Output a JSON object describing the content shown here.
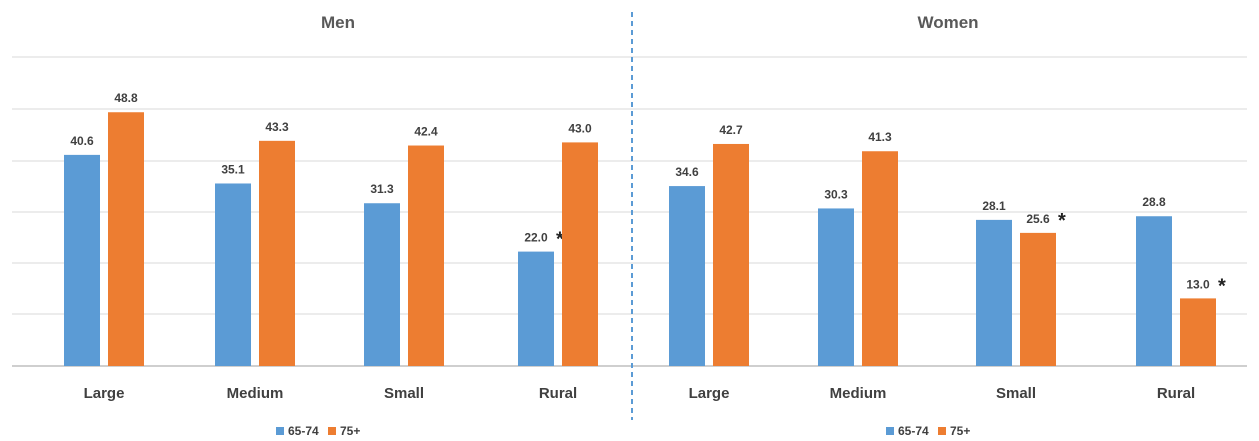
{
  "chart_data": [
    {
      "type": "bar",
      "title": "Men",
      "categories": [
        "Large",
        "Medium",
        "Small",
        "Rural"
      ],
      "series": [
        {
          "name": "65-74",
          "values": [
            40.6,
            35.1,
            31.3,
            22.0
          ],
          "value_labels": [
            "40.6",
            "35.1",
            "31.3",
            "22.0"
          ],
          "starred": [
            false,
            false,
            false,
            true
          ]
        },
        {
          "name": "75+",
          "values": [
            48.8,
            43.3,
            42.4,
            43.0
          ],
          "value_labels": [
            "48.8",
            "43.3",
            "42.4",
            "43.0"
          ],
          "starred": [
            false,
            false,
            false,
            false
          ]
        }
      ],
      "ylim": [
        0,
        60
      ],
      "grid": true,
      "legend": "bottom-center"
    },
    {
      "type": "bar",
      "title": "Women",
      "categories": [
        "Large",
        "Medium",
        "Small",
        "Rural"
      ],
      "series": [
        {
          "name": "65-74",
          "values": [
            34.6,
            30.3,
            28.1,
            28.8
          ],
          "value_labels": [
            "34.6",
            "30.3",
            "28.1",
            "28.8"
          ],
          "starred": [
            false,
            false,
            false,
            false
          ]
        },
        {
          "name": "75+",
          "values": [
            42.7,
            41.3,
            25.6,
            13.0
          ],
          "value_labels": [
            "42.7",
            "41.3",
            "25.6",
            "13.0"
          ],
          "starred": [
            false,
            false,
            true,
            true
          ]
        }
      ],
      "ylim": [
        0,
        60
      ],
      "grid": true,
      "legend": "bottom-center"
    }
  ],
  "star_symbol": "*",
  "colors": {
    "65-74": "#5b9bd5",
    "75+": "#ed7d31",
    "grid": "#d9d9d9",
    "divider": "#5b9bd5"
  }
}
